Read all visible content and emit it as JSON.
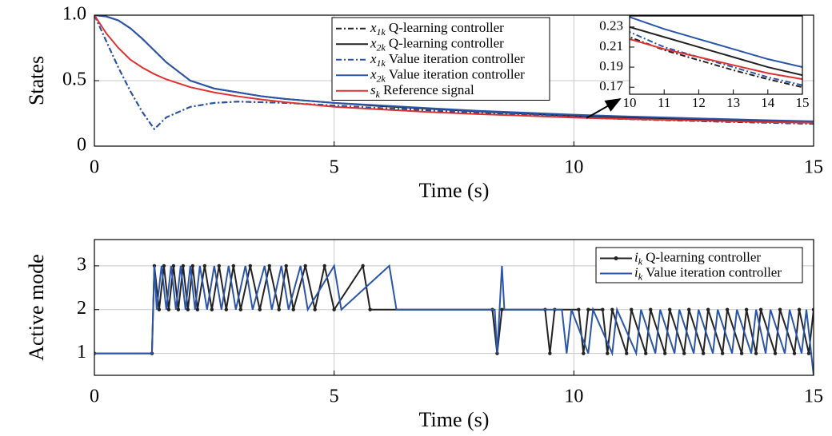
{
  "chart_data": [
    {
      "type": "line",
      "ylabel": "States",
      "xlabel": "Time (s)",
      "xlim": [
        0,
        15
      ],
      "xticks": [
        0,
        5,
        10,
        15
      ],
      "ylim": [
        0,
        1
      ],
      "yticks": [
        0,
        0.5,
        {
          "value": 1,
          "label": "1.0"
        }
      ],
      "grid": true,
      "x": [
        0,
        0.25,
        0.5,
        0.75,
        1,
        1.25,
        1.5,
        2,
        2.5,
        3,
        3.5,
        4,
        5,
        6,
        7,
        8,
        9,
        10,
        11,
        12,
        13,
        14,
        15
      ],
      "series": [
        {
          "symbol": "x",
          "subscript": "1k",
          "name": "Q-learning controller",
          "color": "#222222",
          "linestyle": "dashdot",
          "values": [
            1,
            0.8,
            0.6,
            0.42,
            0.26,
            0.13,
            0.22,
            0.3,
            0.33,
            0.34,
            0.335,
            0.33,
            0.31,
            0.29,
            0.272,
            0.256,
            0.24,
            0.22,
            0.207,
            0.197,
            0.187,
            0.178,
            0.17
          ]
        },
        {
          "symbol": "x",
          "subscript": "2k",
          "name": "Q-learning controller",
          "color": "#222222",
          "linestyle": "solid",
          "values": [
            1,
            0.99,
            0.96,
            0.9,
            0.82,
            0.73,
            0.64,
            0.5,
            0.44,
            0.41,
            0.38,
            0.36,
            0.33,
            0.305,
            0.285,
            0.265,
            0.248,
            0.23,
            0.22,
            0.21,
            0.2,
            0.19,
            0.182
          ]
        },
        {
          "symbol": "x",
          "subscript": "1k",
          "name": "Value iteration controller",
          "color": "#2a55a8",
          "linestyle": "dashdot",
          "values": [
            1,
            0.8,
            0.6,
            0.42,
            0.26,
            0.13,
            0.22,
            0.3,
            0.33,
            0.34,
            0.335,
            0.33,
            0.31,
            0.29,
            0.275,
            0.26,
            0.245,
            0.225,
            0.21,
            0.2,
            0.19,
            0.18,
            0.172
          ]
        },
        {
          "symbol": "x",
          "subscript": "2k",
          "name": "Value iteration controller",
          "color": "#2a55a8",
          "linestyle": "solid",
          "values": [
            1,
            0.99,
            0.96,
            0.9,
            0.82,
            0.73,
            0.64,
            0.5,
            0.44,
            0.41,
            0.38,
            0.36,
            0.33,
            0.31,
            0.29,
            0.27,
            0.255,
            0.24,
            0.228,
            0.218,
            0.208,
            0.198,
            0.19
          ]
        },
        {
          "symbol": "s",
          "subscript": "k",
          "name": "Reference signal",
          "color": "#e03030",
          "linestyle": "solid",
          "values": [
            1,
            0.86,
            0.75,
            0.66,
            0.6,
            0.55,
            0.51,
            0.45,
            0.41,
            0.38,
            0.355,
            0.335,
            0.3,
            0.28,
            0.26,
            0.245,
            0.232,
            0.218,
            0.208,
            0.2,
            0.192,
            0.184,
            0.178
          ]
        }
      ],
      "inset": {
        "xlim": [
          10,
          15
        ],
        "xticks": [
          10,
          11,
          12,
          13,
          14,
          15
        ],
        "ylim": [
          0.163,
          0.241
        ],
        "yticks": [
          0.17,
          0.19,
          0.21,
          0.23
        ]
      }
    },
    {
      "type": "line",
      "ylabel": "Active mode",
      "xlabel": "Time (s)",
      "xlim": [
        0,
        15
      ],
      "xticks": [
        0,
        5,
        10,
        15
      ],
      "ylim": [
        0.5,
        3.6
      ],
      "yticks": [
        1,
        2,
        3
      ],
      "grid": true,
      "series": [
        {
          "symbol": "i",
          "subscript": "k",
          "name": "Q-learning controller",
          "color": "#222222",
          "linestyle": "solid",
          "marker": "dot",
          "x": [
            0,
            1.2,
            1.25,
            1.35,
            1.45,
            1.55,
            1.65,
            1.75,
            1.85,
            1.95,
            2.05,
            2.15,
            2.3,
            2.45,
            2.6,
            2.75,
            2.9,
            3.05,
            3.25,
            3.45,
            3.65,
            3.85,
            4.0,
            4.15,
            4.4,
            4.6,
            4.8,
            5.0,
            5.6,
            5.75,
            8.3,
            8.4,
            8.5,
            9.4,
            9.5,
            9.6,
            10.1,
            10.2,
            10.3,
            10.6,
            10.7,
            10.8,
            11.1,
            11.2,
            11.5,
            11.6,
            11.9,
            12.0,
            12.3,
            12.4,
            12.7,
            12.8,
            13.1,
            13.2,
            13.5,
            13.6,
            13.8,
            13.9,
            14.2,
            14.3,
            14.6,
            14.7,
            14.9,
            15
          ],
          "values": [
            1,
            1,
            3,
            2,
            3,
            2,
            3,
            2,
            3,
            2,
            3,
            2,
            3,
            2,
            3,
            2,
            3,
            2,
            3,
            2,
            3,
            2,
            3,
            2,
            3,
            2,
            3,
            2,
            3,
            2,
            2,
            1,
            2,
            2,
            1,
            2,
            2,
            1,
            2,
            2,
            1,
            2,
            1,
            2,
            1,
            2,
            1,
            2,
            1,
            2,
            1,
            2,
            1,
            2,
            1,
            2,
            1,
            2,
            1,
            2,
            1,
            2,
            1,
            2
          ]
        },
        {
          "symbol": "i",
          "subscript": "k",
          "name": "Value iteration controller",
          "color": "#2a55a8",
          "linestyle": "solid",
          "x": [
            0,
            1.2,
            1.25,
            1.3,
            1.4,
            1.5,
            1.6,
            1.7,
            1.8,
            1.9,
            2.0,
            2.1,
            2.2,
            2.35,
            2.5,
            2.65,
            2.8,
            2.95,
            3.15,
            3.3,
            3.55,
            3.7,
            3.9,
            4.05,
            4.3,
            4.45,
            5.0,
            5.15,
            6.15,
            6.3,
            8.35,
            8.4,
            8.45,
            8.5,
            8.55,
            9.75,
            9.85,
            9.95,
            10.3,
            10.4,
            10.8,
            10.9,
            11.3,
            11.4,
            11.7,
            11.8,
            12.1,
            12.2,
            12.5,
            12.6,
            12.9,
            13.0,
            13.3,
            13.4,
            13.7,
            13.8,
            14.0,
            14.1,
            14.4,
            14.5,
            14.75,
            14.85,
            15
          ],
          "values": [
            1,
            1,
            3,
            2,
            3,
            2,
            3,
            2,
            3,
            2,
            3,
            2,
            3,
            2,
            3,
            2,
            3,
            2,
            3,
            2,
            3,
            2,
            3,
            2,
            3,
            2,
            3,
            2,
            3,
            2,
            2,
            1,
            2,
            3,
            2,
            2,
            1,
            2,
            1,
            2,
            1,
            2,
            1,
            2,
            1,
            2,
            1,
            2,
            1,
            2,
            1,
            2,
            1,
            2,
            1,
            2,
            1,
            2,
            1,
            2,
            1,
            2,
            0.5
          ]
        }
      ]
    }
  ]
}
